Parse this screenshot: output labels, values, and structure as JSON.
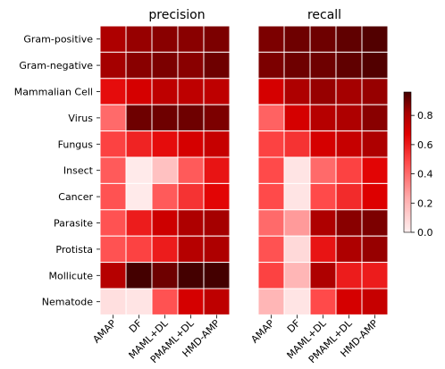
{
  "chart_data": [
    {
      "type": "heatmap",
      "title": "precision",
      "row_labels": [
        "Gram-positive",
        "Gram-negative",
        "Mammalian Cell",
        "Virus",
        "Fungus",
        "Insect",
        "Cancer",
        "Parasite",
        "Protista",
        "Mollicute",
        "Nematode"
      ],
      "col_labels": [
        "AMAP",
        "DF",
        "MAML+DL",
        "PMAML+DL",
        "HMD-AMP"
      ],
      "values": [
        [
          0.8,
          0.84,
          0.86,
          0.86,
          0.88
        ],
        [
          0.82,
          0.86,
          0.88,
          0.86,
          0.9
        ],
        [
          0.64,
          0.7,
          0.76,
          0.76,
          0.76
        ],
        [
          0.4,
          0.9,
          0.9,
          0.9,
          0.88
        ],
        [
          0.5,
          0.58,
          0.64,
          0.7,
          0.74
        ],
        [
          0.44,
          0.02,
          0.16,
          0.44,
          0.62
        ],
        [
          0.46,
          0.02,
          0.44,
          0.54,
          0.66
        ],
        [
          0.46,
          0.6,
          0.72,
          0.8,
          0.82
        ],
        [
          0.46,
          0.5,
          0.6,
          0.78,
          0.8
        ],
        [
          0.78,
          0.98,
          0.9,
          0.96,
          0.97
        ],
        [
          0.06,
          0.04,
          0.46,
          0.7,
          0.76
        ]
      ]
    },
    {
      "type": "heatmap",
      "title": "recall",
      "row_labels": [
        "Gram-positive",
        "Gram-negative",
        "Mammalian Cell",
        "Virus",
        "Fungus",
        "Insect",
        "Cancer",
        "Parasite",
        "Protista",
        "Mollicute",
        "Nematode"
      ],
      "col_labels": [
        "AMAP",
        "DF",
        "MAML+DL",
        "PMAML+DL",
        "HMD-AMP"
      ],
      "values": [
        [
          0.88,
          0.9,
          0.9,
          0.92,
          0.94
        ],
        [
          0.88,
          0.9,
          0.9,
          0.92,
          0.94
        ],
        [
          0.7,
          0.8,
          0.84,
          0.82,
          0.84
        ],
        [
          0.42,
          0.7,
          0.78,
          0.8,
          0.86
        ],
        [
          0.5,
          0.54,
          0.7,
          0.74,
          0.8
        ],
        [
          0.48,
          0.04,
          0.4,
          0.5,
          0.66
        ],
        [
          0.48,
          0.04,
          0.48,
          0.56,
          0.68
        ],
        [
          0.4,
          0.28,
          0.8,
          0.86,
          0.88
        ],
        [
          0.46,
          0.08,
          0.62,
          0.8,
          0.84
        ],
        [
          0.5,
          0.2,
          0.8,
          0.6,
          0.6
        ],
        [
          0.2,
          0.04,
          0.48,
          0.7,
          0.74
        ]
      ]
    }
  ],
  "colorbar": {
    "ticks": [
      0.0,
      0.2,
      0.4,
      0.6,
      0.8
    ],
    "vmin": 0.0,
    "vmax": 0.96
  }
}
